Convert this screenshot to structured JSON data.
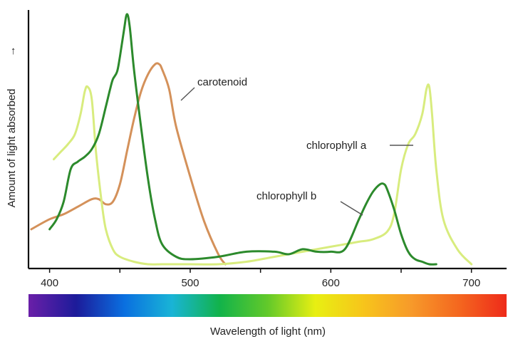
{
  "chart_data": {
    "type": "line",
    "title": "",
    "xlabel": "Wavelength of light (nm)",
    "ylabel": "Amount of light absorbed",
    "ylabel_arrow": "→",
    "xlim": [
      385,
      725
    ],
    "ylim": [
      0,
      100
    ],
    "xticks": [
      400,
      500,
      600,
      700
    ],
    "xticks_minor": [
      450,
      550,
      650
    ],
    "yticks_shown": false,
    "legend": "none (curves labelled directly)",
    "spectrum_bar": {
      "range_nm": [
        400,
        725
      ],
      "colors": [
        "#6a1fa8",
        "#1c1b9a",
        "#0a6fe0",
        "#19b4d6",
        "#12b34a",
        "#62c92a",
        "#e8ef12",
        "#f7c51b",
        "#f79a2a",
        "#f4671f",
        "#ee2b1a"
      ]
    },
    "series": [
      {
        "name": "chlorophyll a",
        "color": "#d8ec7e",
        "x": [
          403,
          408,
          413,
          418,
          422,
          425,
          427,
          430,
          433,
          437,
          440,
          445,
          450,
          460,
          470,
          480,
          490,
          500,
          520,
          540,
          560,
          580,
          600,
          610,
          620,
          630,
          640,
          645,
          650,
          655,
          660,
          665,
          668,
          670,
          672,
          675,
          680,
          690,
          700
        ],
        "values": [
          42,
          45,
          48,
          52,
          60,
          69,
          71,
          66,
          45,
          25,
          14,
          6,
          3,
          1,
          0,
          0,
          0,
          0,
          0,
          1,
          3,
          5,
          7,
          8,
          9,
          10,
          13,
          20,
          38,
          48,
          52,
          60,
          70,
          71,
          60,
          38,
          18,
          6,
          0
        ]
      },
      {
        "name": "chlorophyll b",
        "color": "#2c8a2c",
        "x": [
          400,
          405,
          410,
          415,
          420,
          425,
          430,
          435,
          440,
          443,
          445,
          448,
          450,
          453,
          455,
          457,
          460,
          465,
          470,
          475,
          480,
          490,
          500,
          520,
          540,
          560,
          570,
          580,
          590,
          600,
          610,
          620,
          625,
          630,
          635,
          638,
          640,
          645,
          650,
          655,
          660,
          665,
          670,
          675
        ],
        "values": [
          14,
          18,
          25,
          38,
          41,
          43,
          46,
          52,
          63,
          70,
          74,
          77,
          83,
          94,
          100,
          95,
          78,
          55,
          34,
          18,
          8,
          3,
          2,
          3,
          5,
          5,
          4,
          6,
          5,
          5,
          6,
          18,
          24,
          29,
          32,
          32,
          30,
          22,
          12,
          5,
          2,
          1,
          0,
          0
        ]
      },
      {
        "name": "carotenoid",
        "color": "#d4915a",
        "x": [
          387,
          400,
          410,
          420,
          430,
          435,
          440,
          445,
          450,
          455,
          460,
          465,
          470,
          475,
          478,
          480,
          485,
          490,
          500,
          510,
          520,
          525
        ],
        "values": [
          14,
          18,
          20,
          23,
          26,
          26,
          24,
          25,
          32,
          45,
          58,
          69,
          76,
          80,
          80,
          78,
          70,
          55,
          35,
          17,
          4,
          0
        ]
      }
    ],
    "annotations": [
      {
        "text": "carotenoid",
        "series": "carotenoid"
      },
      {
        "text": "chlorophyll a",
        "series": "chlorophyll a"
      },
      {
        "text": "chlorophyll b",
        "series": "chlorophyll b"
      }
    ]
  }
}
